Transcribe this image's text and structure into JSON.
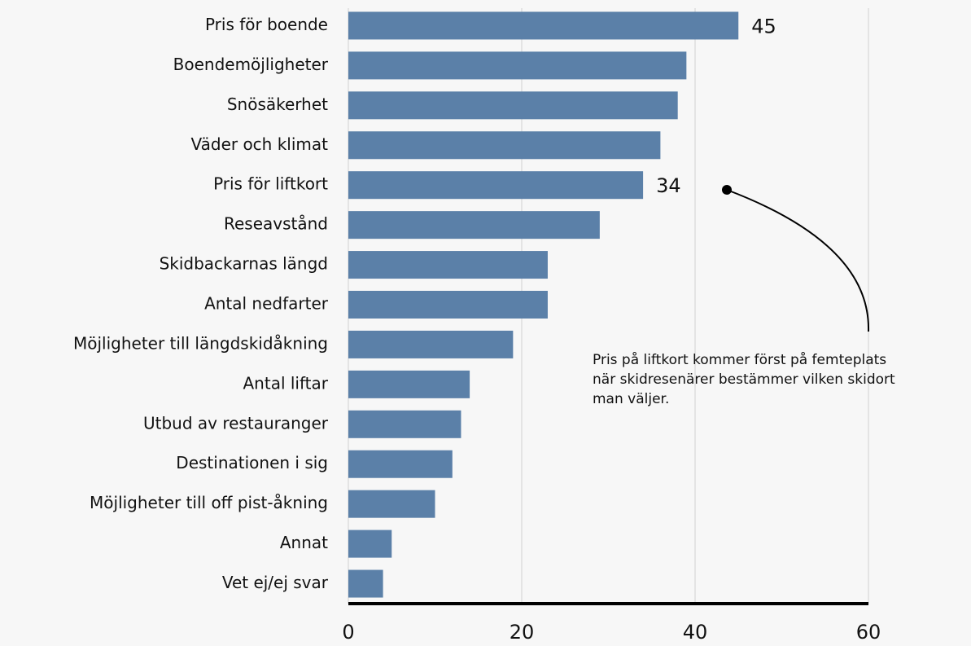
{
  "chart_data": {
    "type": "barh",
    "categories": [
      "Pris för boende",
      "Boendemöjligheter",
      "Snösäkerhet",
      "Väder och klimat",
      "Pris för liftkort",
      "Reseavstånd",
      "Skidbackarnas längd",
      "Antal nedfarter",
      "Möjligheter till längdskidåkning",
      "Antal liftar",
      "Utbud av restauranger",
      "Destinationen i sig",
      "Möjligheter till off pist-åkning",
      "Annat",
      "Vet ej/ej svar"
    ],
    "values": [
      45,
      39,
      38,
      36,
      34,
      29,
      23,
      23,
      19,
      14,
      13,
      12,
      10,
      5,
      4
    ],
    "labeled": [
      0,
      4
    ],
    "color": "#5b80a8",
    "xlim": [
      0,
      60
    ],
    "xticks": [
      0,
      20,
      40,
      60
    ],
    "grid": true,
    "annotation": [
      "Pris på liftkort kommer först på femteplats",
      "när skidresenärer bestämmer vilken skidort",
      "man väljer."
    ]
  }
}
